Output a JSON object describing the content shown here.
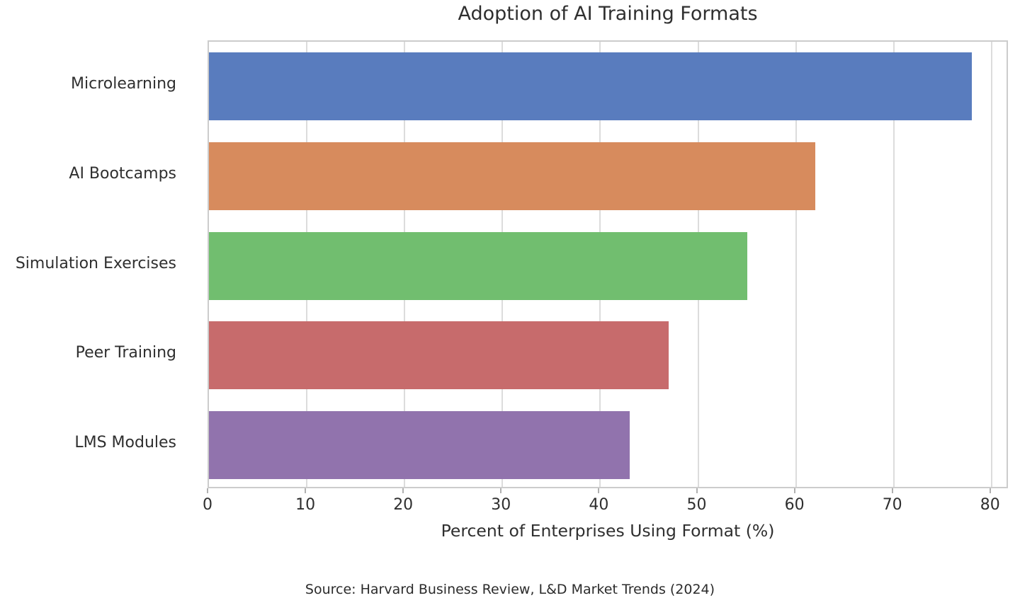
{
  "title": "Adoption of AI Training Formats",
  "xlabel": "Percent of Enterprises Using Format (%)",
  "source": "Source: Harvard Business Review, L&D Market Trends (2024)",
  "chart_data": {
    "type": "bar",
    "orientation": "horizontal",
    "title": "Adoption of AI Training Formats",
    "xlabel": "Percent of Enterprises Using Format (%)",
    "ylabel": "",
    "categories": [
      "Microlearning",
      "AI Bootcamps",
      "Simulation Exercises",
      "Peer Training",
      "LMS Modules"
    ],
    "values": [
      78,
      62,
      55,
      47,
      43
    ],
    "bar_colors": [
      "#597cbe",
      "#d78b5d",
      "#71be6f",
      "#c76b6c",
      "#9173ad"
    ],
    "xticks": [
      0,
      10,
      20,
      30,
      40,
      50,
      60,
      70,
      80
    ],
    "xlim": [
      0,
      81.8
    ],
    "grid": true,
    "grid_axis": "x",
    "legend": null,
    "annotation": "Source: Harvard Business Review, L&D Market Trends (2024)"
  }
}
